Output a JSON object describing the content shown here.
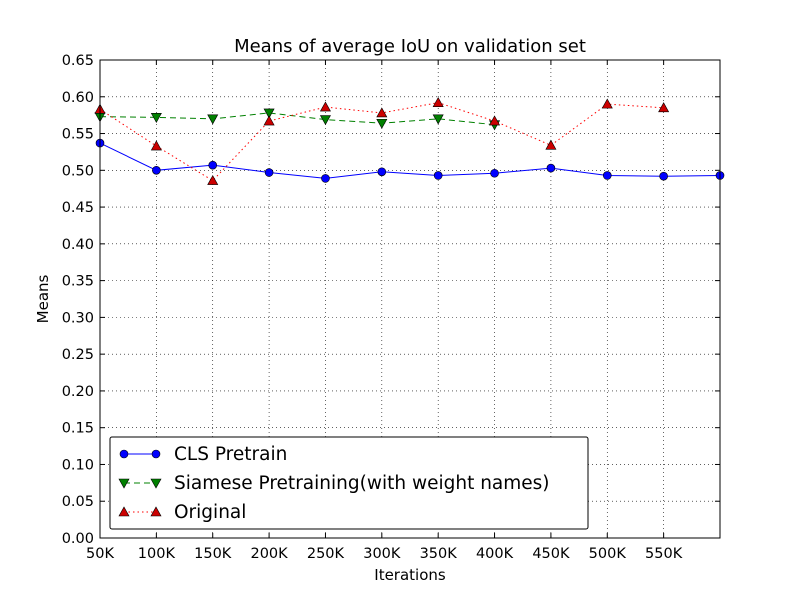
{
  "chart_data": {
    "type": "line",
    "title": "Means of average IoU on validation set",
    "xlabel": "Iterations",
    "ylabel": "Means",
    "x_ticks": [
      "50K",
      "100K",
      "150K",
      "200K",
      "250K",
      "300K",
      "350K",
      "400K",
      "450K",
      "500K",
      "550K"
    ],
    "y_ticks": [
      "0.00",
      "0.05",
      "0.10",
      "0.15",
      "0.20",
      "0.25",
      "0.30",
      "0.35",
      "0.40",
      "0.45",
      "0.50",
      "0.55",
      "0.60",
      "0.65"
    ],
    "xlim": [
      50,
      600
    ],
    "ylim": [
      0.0,
      0.65
    ],
    "x_unit": "K",
    "grid": true,
    "legend_position": "lower-left",
    "series": [
      {
        "name": "CLS Pretrain",
        "color": "#0000ff",
        "line_style": "solid",
        "marker": "circle",
        "marker_color": "#0000ff",
        "x": [
          50,
          100,
          150,
          200,
          250,
          300,
          350,
          400,
          450,
          500,
          550,
          600
        ],
        "values": [
          0.537,
          0.5,
          0.507,
          0.497,
          0.489,
          0.498,
          0.493,
          0.496,
          0.503,
          0.493,
          0.492,
          0.493
        ]
      },
      {
        "name": "Siamese Pretraining(with weight names)",
        "color": "#008000",
        "line_style": "dashed",
        "marker": "triangle-down",
        "marker_color": "#008000",
        "x": [
          50,
          100,
          150,
          200,
          250,
          300,
          350,
          400
        ],
        "values": [
          0.573,
          0.572,
          0.57,
          0.578,
          0.569,
          0.564,
          0.57,
          0.562
        ]
      },
      {
        "name": "Original",
        "color": "#ff0000",
        "line_style": "dotted",
        "marker": "triangle-up",
        "marker_color": "#cc0000",
        "x": [
          50,
          100,
          150,
          200,
          250,
          300,
          350,
          400,
          450,
          500,
          550
        ],
        "values": [
          0.583,
          0.533,
          0.486,
          0.567,
          0.586,
          0.578,
          0.592,
          0.567,
          0.534,
          0.59,
          0.585
        ]
      }
    ]
  }
}
